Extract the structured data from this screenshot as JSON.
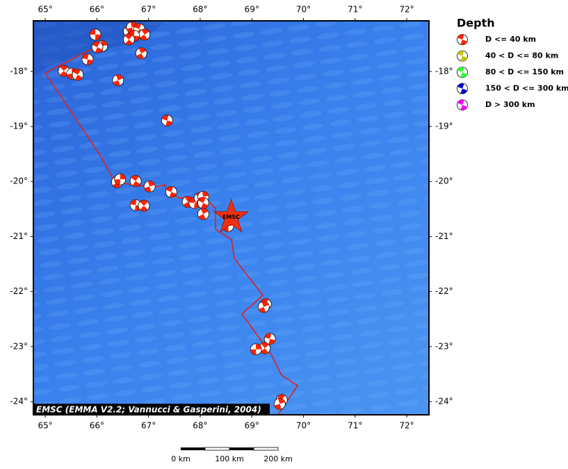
{
  "map": {
    "xlim": [
      64.77,
      72.43
    ],
    "ylim": [
      -24.24,
      -17.08
    ],
    "xticks": [
      {
        "value": 65,
        "label": "65°"
      },
      {
        "value": 66,
        "label": "66°"
      },
      {
        "value": 67,
        "label": "67°"
      },
      {
        "value": 68,
        "label": "68°"
      },
      {
        "value": 69,
        "label": "69°"
      },
      {
        "value": 70,
        "label": "70°"
      },
      {
        "value": 71,
        "label": "71°"
      },
      {
        "value": 72,
        "label": "72°"
      }
    ],
    "yticks": [
      {
        "value": -18,
        "label": "-18°"
      },
      {
        "value": -19,
        "label": "-19°"
      },
      {
        "value": -20,
        "label": "-20°"
      },
      {
        "value": -21,
        "label": "-21°"
      },
      {
        "value": -22,
        "label": "-22°"
      },
      {
        "value": -23,
        "label": "-23°"
      },
      {
        "value": -24,
        "label": "-24°"
      }
    ],
    "events_lon": [
      65.97,
      66.62,
      66.68,
      66.82,
      66.92,
      66.72,
      66.62,
      66.1,
      66.01,
      66.86,
      65.82,
      65.36,
      65.52,
      65.63,
      66.41,
      67.36,
      66.39,
      66.45,
      66.75,
      67.02,
      67.44,
      67.76,
      67.89,
      67.99,
      68.06,
      68.06,
      68.06,
      66.75,
      66.91,
      68.54,
      69.27,
      69.23,
      69.35,
      69.25,
      69.08,
      69.58,
      69.54
    ],
    "events_lat": [
      -17.33,
      -17.27,
      -17.2,
      -17.23,
      -17.33,
      -17.35,
      -17.42,
      -17.54,
      -17.56,
      -17.67,
      -17.78,
      -17.99,
      -18.04,
      -18.06,
      -18.16,
      -18.89,
      -20.01,
      -19.96,
      -19.99,
      -20.09,
      -20.19,
      -20.37,
      -20.39,
      -20.3,
      -20.28,
      -20.39,
      -20.59,
      -20.43,
      -20.44,
      -20.81,
      -22.23,
      -22.28,
      -22.86,
      -23.03,
      -23.05,
      -23.97,
      -24.04
    ],
    "epicenter": {
      "label": "EMSC",
      "lon": 68.6,
      "lat": -20.65
    },
    "credit": "EMSC (EMMA V2.2; Vannucci & Gasperini, 2004)",
    "legend": {
      "title": "Depth",
      "items": [
        {
          "label": "D <= 40 km",
          "color": "#ff2200"
        },
        {
          "label": "40 < D <= 80 km",
          "color": "#c8c800"
        },
        {
          "label": "80 < D <= 150 km",
          "color": "#33ff33"
        },
        {
          "label": "150 < D <= 300 km",
          "color": "#0000cc"
        },
        {
          "label": "D > 300 km",
          "color": "#ff00ff"
        }
      ]
    },
    "scale": [
      "0 km",
      "100 km",
      "200 km"
    ]
  }
}
